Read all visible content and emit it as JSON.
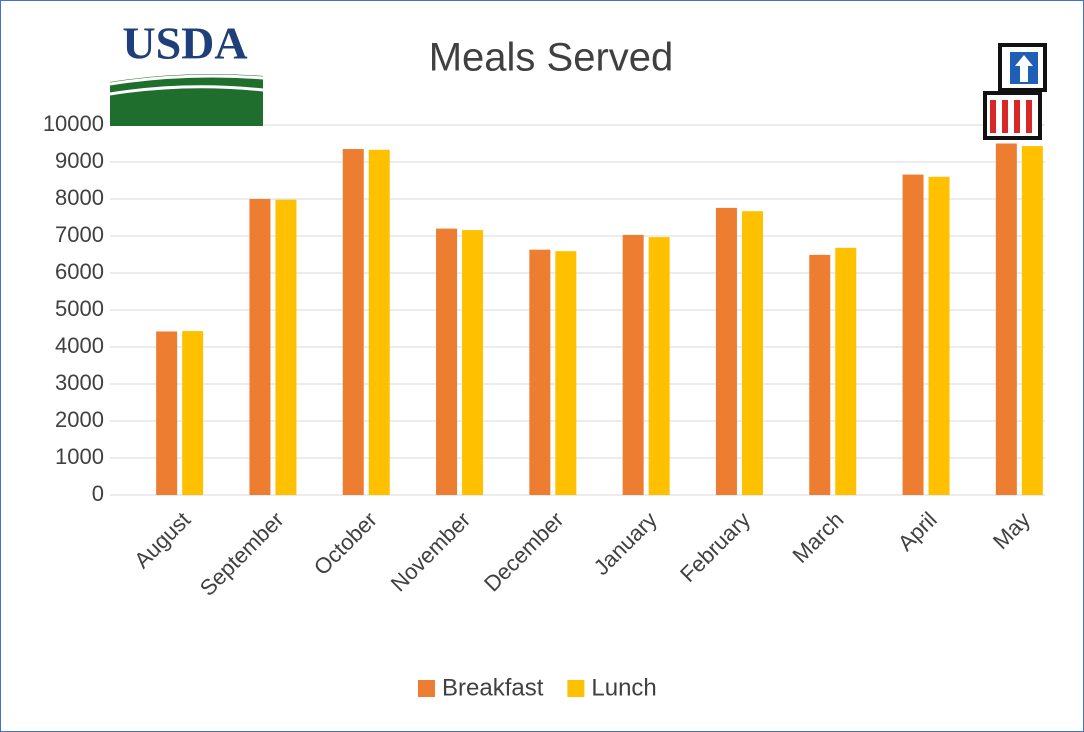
{
  "chart_data": {
    "type": "bar",
    "title": "Meals Served",
    "logo": "USDA",
    "categories": [
      "August",
      "September",
      "October",
      "November",
      "December",
      "January",
      "February",
      "March",
      "April",
      "May"
    ],
    "series": [
      {
        "name": "Breakfast",
        "color": "#ed7d31",
        "values": [
          4420,
          8000,
          9350,
          7200,
          6630,
          7030,
          7760,
          6490,
          8660,
          9500
        ]
      },
      {
        "name": "Lunch",
        "color": "#ffc000",
        "values": [
          4430,
          7980,
          9330,
          7160,
          6590,
          6970,
          7670,
          6680,
          8600,
          9430
        ]
      }
    ],
    "ylim": [
      0,
      10000
    ],
    "yticks": [
      0,
      1000,
      2000,
      3000,
      4000,
      5000,
      6000,
      7000,
      8000,
      9000,
      10000
    ],
    "grid": true,
    "legend": "bottom"
  }
}
